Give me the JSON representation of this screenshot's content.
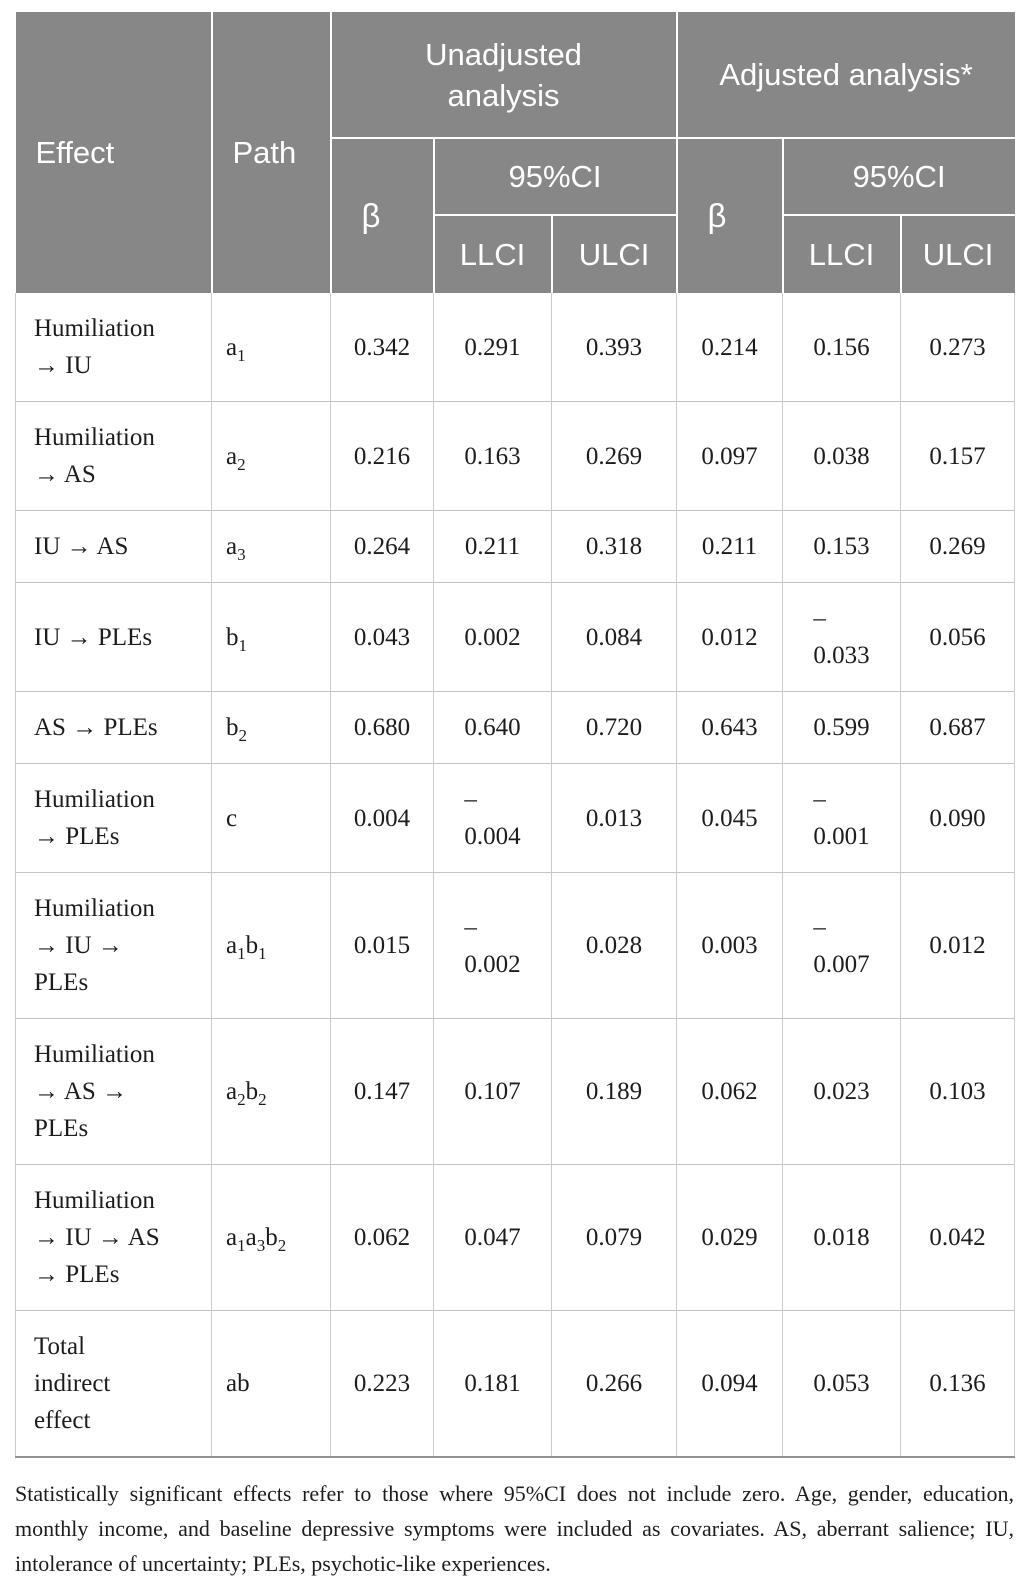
{
  "table": {
    "header": {
      "effect": "Effect",
      "path": "Path",
      "group_unadjusted": "Unadjusted\nanalysis",
      "group_adjusted": "Adjusted analysis*",
      "beta": "β",
      "ci": "95%CI",
      "llci": "LLCI",
      "ulci": "ULCI"
    },
    "rows": [
      {
        "effect": "Humiliation\n→ IU",
        "path": "a1",
        "cells": [
          "0.342",
          "0.291",
          "0.393",
          "0.214",
          "0.156",
          "0.273"
        ]
      },
      {
        "effect": "Humiliation\n→ AS",
        "path": "a2",
        "cells": [
          "0.216",
          "0.163",
          "0.269",
          "0.097",
          "0.038",
          "0.157"
        ]
      },
      {
        "effect": "IU → AS",
        "path": "a3",
        "cells": [
          "0.264",
          "0.211",
          "0.318",
          "0.211",
          "0.153",
          "0.269"
        ]
      },
      {
        "effect": "IU → PLEs",
        "path": "b1",
        "cells": [
          "0.043",
          "0.002",
          "0.084",
          "0.012",
          "–\n0.033",
          "0.056"
        ]
      },
      {
        "effect": "AS → PLEs",
        "path": "b2",
        "cells": [
          "0.680",
          "0.640",
          "0.720",
          "0.643",
          "0.599",
          "0.687"
        ]
      },
      {
        "effect": "Humiliation\n→ PLEs",
        "path": "c",
        "cells": [
          "0.004",
          "–\n0.004",
          "0.013",
          "0.045",
          "–\n0.001",
          "0.090"
        ]
      },
      {
        "effect": "Humiliation\n→ IU →\nPLEs",
        "path": "a1b1",
        "cells": [
          "0.015",
          "–\n0.002",
          "0.028",
          "0.003",
          "–\n0.007",
          "0.012"
        ]
      },
      {
        "effect": "Humiliation\n→ AS →\nPLEs",
        "path": "a2b2",
        "cells": [
          "0.147",
          "0.107",
          "0.189",
          "0.062",
          "0.023",
          "0.103"
        ]
      },
      {
        "effect": "Humiliation\n→ IU → AS\n→ PLEs",
        "path": "a1a3b2",
        "cells": [
          "0.062",
          "0.047",
          "0.079",
          "0.029",
          "0.018",
          "0.042"
        ]
      },
      {
        "effect": "Total\nindirect\neffect",
        "path": "ab",
        "cells": [
          "0.223",
          "0.181",
          "0.266",
          "0.094",
          "0.053",
          "0.136"
        ]
      }
    ]
  },
  "footnote": "Statistically significant effects refer to those where 95%CI does not include zero. Age, gender, education, monthly income, and baseline depressive symptoms were included as covariates. AS, aberrant salience; IU, intolerance of uncertainty; PLEs, psychotic-like experiences.",
  "colors": {
    "header_bg": "#878787",
    "header_text": "#ffffff",
    "grid_vertical": "#cbcbcb",
    "grid_horizontal": "#c3c3c3",
    "bottom_border": "#919191",
    "body_text": "#1c1c1c"
  }
}
